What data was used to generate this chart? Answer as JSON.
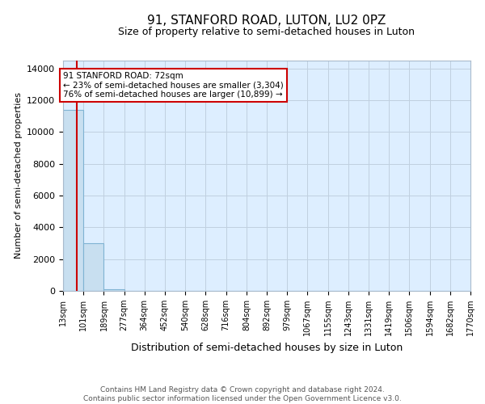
{
  "title": "91, STANFORD ROAD, LUTON, LU2 0PZ",
  "subtitle": "Size of property relative to semi-detached houses in Luton",
  "xlabel": "Distribution of semi-detached houses by size in Luton",
  "ylabel": "Number of semi-detached properties",
  "property_size": 72,
  "annotation_line1": "91 STANFORD ROAD: 72sqm",
  "annotation_line2": "← 23% of semi-detached houses are smaller (3,304)",
  "annotation_line3": "76% of semi-detached houses are larger (10,899) →",
  "bin_edges": [
    13,
    101,
    189,
    277,
    364,
    452,
    540,
    628,
    716,
    804,
    892,
    979,
    1067,
    1155,
    1243,
    1331,
    1419,
    1506,
    1594,
    1682,
    1770
  ],
  "bin_labels": [
    "13sqm",
    "101sqm",
    "189sqm",
    "277sqm",
    "364sqm",
    "452sqm",
    "540sqm",
    "628sqm",
    "716sqm",
    "804sqm",
    "892sqm",
    "979sqm",
    "1067sqm",
    "1155sqm",
    "1243sqm",
    "1331sqm",
    "1419sqm",
    "1506sqm",
    "1594sqm",
    "1682sqm",
    "1770sqm"
  ],
  "bar_heights": [
    11400,
    3000,
    100,
    0,
    0,
    0,
    0,
    0,
    0,
    0,
    0,
    0,
    0,
    0,
    0,
    0,
    0,
    0,
    0,
    0
  ],
  "bar_color": "#c8dff0",
  "bar_edge_color": "#7fb3d3",
  "grid_color": "#c0d0e0",
  "background_color": "#ddeeff",
  "red_line_color": "#cc0000",
  "annotation_box_color": "#ffffff",
  "annotation_box_edge": "#cc0000",
  "footer_line1": "Contains HM Land Registry data © Crown copyright and database right 2024.",
  "footer_line2": "Contains public sector information licensed under the Open Government Licence v3.0.",
  "ylim": [
    0,
    14500
  ],
  "yticks": [
    0,
    2000,
    4000,
    6000,
    8000,
    10000,
    12000,
    14000
  ]
}
